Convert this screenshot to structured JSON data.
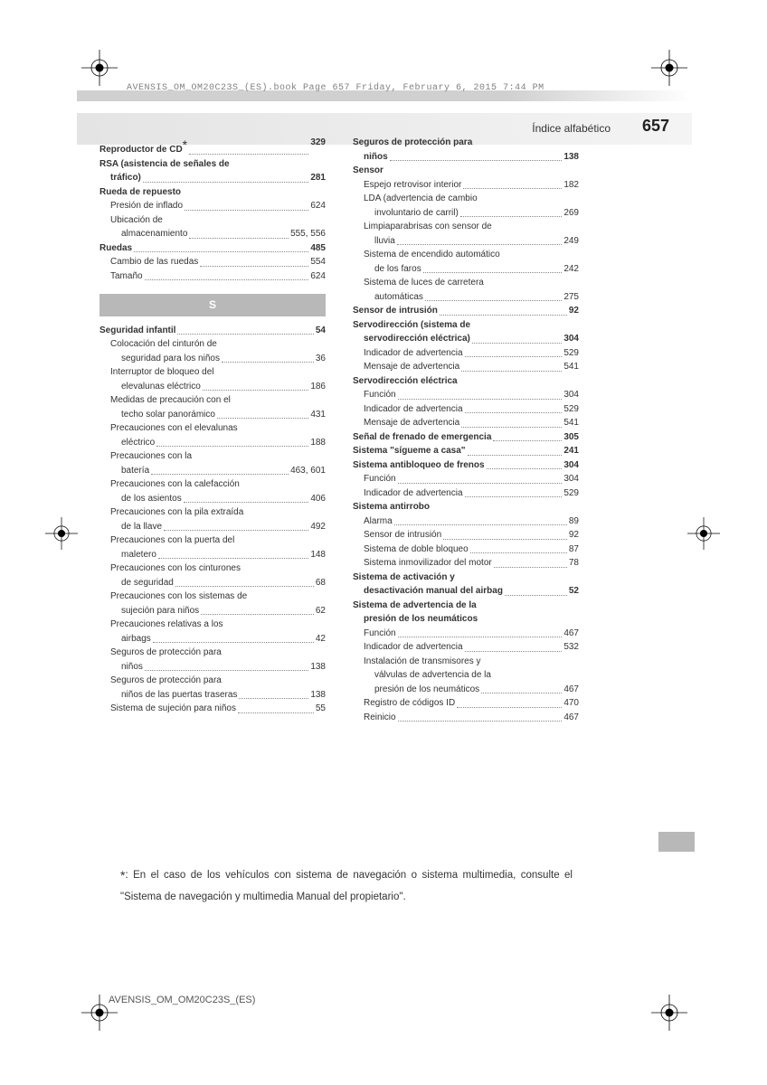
{
  "print": {
    "header": "AVENSIS_OM_OM20C23S_(ES).book  Page 657  Friday, February 6, 2015  7:44 PM",
    "footer": "AVENSIS_OM_OM20C23S_(ES)"
  },
  "header": {
    "section": "Índice alfabético",
    "page": "657"
  },
  "section_letter": "S",
  "col1": [
    {
      "label": "Reproductor de CD*",
      "page": "329",
      "bold": true,
      "indent": 0,
      "star": true
    },
    {
      "label": "RSA (asistencia de señales de",
      "page": "",
      "bold": true,
      "indent": 0,
      "nodots": true
    },
    {
      "label": "tráfico)",
      "page": "281",
      "bold": true,
      "indent": 1
    },
    {
      "label": "Rueda de repuesto",
      "page": "",
      "bold": true,
      "indent": 0,
      "nodots": true
    },
    {
      "label": "Presión de inflado",
      "page": "624",
      "bold": false,
      "indent": 1
    },
    {
      "label": "Ubicación de",
      "page": "",
      "bold": false,
      "indent": 1,
      "nodots": true
    },
    {
      "label": "almacenamiento",
      "page": "555, 556",
      "bold": false,
      "indent": 2
    },
    {
      "label": "Ruedas",
      "page": "485",
      "bold": true,
      "indent": 0
    },
    {
      "label": "Cambio de las ruedas",
      "page": "554",
      "bold": false,
      "indent": 1
    },
    {
      "label": "Tamaño",
      "page": "624",
      "bold": false,
      "indent": 1
    }
  ],
  "col1b": [
    {
      "label": "Seguridad infantil",
      "page": "54",
      "bold": true,
      "indent": 0
    },
    {
      "label": "Colocación del cinturón de",
      "page": "",
      "bold": false,
      "indent": 1,
      "nodots": true
    },
    {
      "label": "seguridad para los niños",
      "page": "36",
      "bold": false,
      "indent": 2
    },
    {
      "label": "Interruptor de bloqueo del",
      "page": "",
      "bold": false,
      "indent": 1,
      "nodots": true
    },
    {
      "label": "elevalunas eléctrico",
      "page": "186",
      "bold": false,
      "indent": 2
    },
    {
      "label": "Medidas de precaución con el",
      "page": "",
      "bold": false,
      "indent": 1,
      "nodots": true
    },
    {
      "label": "techo solar panorámico",
      "page": "431",
      "bold": false,
      "indent": 2
    },
    {
      "label": "Precauciones con el elevalunas",
      "page": "",
      "bold": false,
      "indent": 1,
      "nodots": true
    },
    {
      "label": "eléctrico",
      "page": "188",
      "bold": false,
      "indent": 2
    },
    {
      "label": "Precauciones con la",
      "page": "",
      "bold": false,
      "indent": 1,
      "nodots": true
    },
    {
      "label": "batería",
      "page": "463, 601",
      "bold": false,
      "indent": 2
    },
    {
      "label": "Precauciones con la calefacción",
      "page": "",
      "bold": false,
      "indent": 1,
      "nodots": true
    },
    {
      "label": "de los asientos",
      "page": "406",
      "bold": false,
      "indent": 2
    },
    {
      "label": "Precauciones con la pila extraída",
      "page": "",
      "bold": false,
      "indent": 1,
      "nodots": true
    },
    {
      "label": "de la llave",
      "page": "492",
      "bold": false,
      "indent": 2
    },
    {
      "label": "Precauciones con la puerta del",
      "page": "",
      "bold": false,
      "indent": 1,
      "nodots": true
    },
    {
      "label": "maletero",
      "page": "148",
      "bold": false,
      "indent": 2
    },
    {
      "label": "Precauciones con los cinturones",
      "page": "",
      "bold": false,
      "indent": 1,
      "nodots": true
    },
    {
      "label": "de seguridad",
      "page": "68",
      "bold": false,
      "indent": 2
    },
    {
      "label": "Precauciones con los sistemas de",
      "page": "",
      "bold": false,
      "indent": 1,
      "nodots": true
    },
    {
      "label": "sujeción para niños",
      "page": "62",
      "bold": false,
      "indent": 2
    },
    {
      "label": "Precauciones relativas a los",
      "page": "",
      "bold": false,
      "indent": 1,
      "nodots": true
    },
    {
      "label": "airbags",
      "page": "42",
      "bold": false,
      "indent": 2
    },
    {
      "label": "Seguros de protección para",
      "page": "",
      "bold": false,
      "indent": 1,
      "nodots": true
    },
    {
      "label": "niños",
      "page": "138",
      "bold": false,
      "indent": 2
    },
    {
      "label": "Seguros de protección para",
      "page": "",
      "bold": false,
      "indent": 1,
      "nodots": true
    },
    {
      "label": "niños de las puertas traseras",
      "page": "138",
      "bold": false,
      "indent": 2,
      "shortdots": true
    },
    {
      "label": "Sistema de sujeción para niños",
      "page": "55",
      "bold": false,
      "indent": 1,
      "shortdots": true
    }
  ],
  "col2": [
    {
      "label": "Seguros de protección para",
      "page": "",
      "bold": true,
      "indent": 0,
      "nodots": true
    },
    {
      "label": "niños",
      "page": "138",
      "bold": true,
      "indent": 1
    },
    {
      "label": "Sensor",
      "page": "",
      "bold": true,
      "indent": 0,
      "nodots": true
    },
    {
      "label": "Espejo retrovisor interior",
      "page": "182",
      "bold": false,
      "indent": 1
    },
    {
      "label": "LDA (advertencia de cambio",
      "page": "",
      "bold": false,
      "indent": 1,
      "nodots": true
    },
    {
      "label": "involuntario de carril)",
      "page": "269",
      "bold": false,
      "indent": 2
    },
    {
      "label": "Limpiaparabrisas con sensor de",
      "page": "",
      "bold": false,
      "indent": 1,
      "nodots": true
    },
    {
      "label": "lluvia",
      "page": "249",
      "bold": false,
      "indent": 2
    },
    {
      "label": "Sistema de encendido automático",
      "page": "",
      "bold": false,
      "indent": 1,
      "nodots": true
    },
    {
      "label": "de los faros",
      "page": "242",
      "bold": false,
      "indent": 2
    },
    {
      "label": "Sistema de luces de carretera",
      "page": "",
      "bold": false,
      "indent": 1,
      "nodots": true
    },
    {
      "label": "automáticas",
      "page": "275",
      "bold": false,
      "indent": 2
    },
    {
      "label": "Sensor de intrusión",
      "page": "92",
      "bold": true,
      "indent": 0
    },
    {
      "label": "Servodirección (sistema de",
      "page": "",
      "bold": true,
      "indent": 0,
      "nodots": true
    },
    {
      "label": "servodirección eléctrica)",
      "page": "304",
      "bold": true,
      "indent": 1
    },
    {
      "label": "Indicador de advertencia",
      "page": "529",
      "bold": false,
      "indent": 1
    },
    {
      "label": "Mensaje de advertencia",
      "page": "541",
      "bold": false,
      "indent": 1
    },
    {
      "label": "Servodirección eléctrica",
      "page": "",
      "bold": true,
      "indent": 0,
      "nodots": true
    },
    {
      "label": "Función",
      "page": "304",
      "bold": false,
      "indent": 1
    },
    {
      "label": "Indicador de advertencia",
      "page": "529",
      "bold": false,
      "indent": 1
    },
    {
      "label": "Mensaje de advertencia",
      "page": "541",
      "bold": false,
      "indent": 1
    },
    {
      "label": "Señal de frenado de emergencia",
      "page": "305",
      "bold": true,
      "indent": 0,
      "shortdots": true
    },
    {
      "label": "Sistema \"sígueme a casa\"",
      "page": "241",
      "bold": true,
      "indent": 0
    },
    {
      "label": "Sistema antibloqueo de frenos",
      "page": "304",
      "bold": true,
      "indent": 0
    },
    {
      "label": "Función",
      "page": "304",
      "bold": false,
      "indent": 1
    },
    {
      "label": "Indicador de advertencia",
      "page": "529",
      "bold": false,
      "indent": 1
    },
    {
      "label": "Sistema antirrobo",
      "page": "",
      "bold": true,
      "indent": 0,
      "nodots": true
    },
    {
      "label": "Alarma",
      "page": "89",
      "bold": false,
      "indent": 1
    },
    {
      "label": "Sensor de intrusión",
      "page": "92",
      "bold": false,
      "indent": 1
    },
    {
      "label": "Sistema de doble bloqueo",
      "page": "87",
      "bold": false,
      "indent": 1
    },
    {
      "label": "Sistema inmovilizador del motor",
      "page": "78",
      "bold": false,
      "indent": 1,
      "shortdots": true
    },
    {
      "label": "Sistema de activación y",
      "page": "",
      "bold": true,
      "indent": 0,
      "nodots": true
    },
    {
      "label": "desactivación manual del airbag",
      "page": "52",
      "bold": true,
      "indent": 1,
      "shortdots": true
    },
    {
      "label": "Sistema de advertencia de la",
      "page": "",
      "bold": true,
      "indent": 0,
      "nodots": true
    },
    {
      "label": "presión de los neumáticos",
      "page": "",
      "bold": true,
      "indent": 1,
      "nodots": true
    },
    {
      "label": "Función",
      "page": "467",
      "bold": false,
      "indent": 1
    },
    {
      "label": "Indicador de advertencia",
      "page": "532",
      "bold": false,
      "indent": 1
    },
    {
      "label": "Instalación de transmisores y",
      "page": "",
      "bold": false,
      "indent": 1,
      "nodots": true
    },
    {
      "label": "válvulas de advertencia de la",
      "page": "",
      "bold": false,
      "indent": 2,
      "nodots": true
    },
    {
      "label": "presión de los neumáticos",
      "page": "467",
      "bold": false,
      "indent": 2
    },
    {
      "label": "Registro de códigos ID",
      "page": "470",
      "bold": false,
      "indent": 1
    },
    {
      "label": "Reinicio",
      "page": "467",
      "bold": false,
      "indent": 1
    }
  ],
  "footnote": {
    "star": "*",
    "text": ": En el caso de los vehículos con sistema de navegación o sistema multimedia, consulte el \"Sistema de navegación y multimedia Manual del propietario\"."
  },
  "colors": {
    "crop": "#000000",
    "gray_bar": "#d0d0d0",
    "section_bg": "#b8b8b8"
  }
}
